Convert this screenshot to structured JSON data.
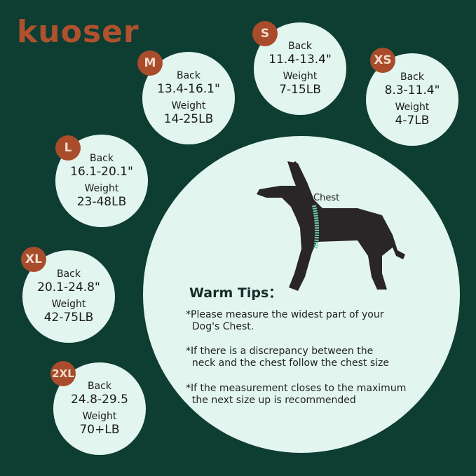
{
  "brand": {
    "logo": "kuoser"
  },
  "colors": {
    "background": "#0e3d32",
    "circle": "#e2f5ee",
    "badge": "#a84c2b",
    "chest_band": "#6fcfb0"
  },
  "sizes": [
    {
      "size": "M",
      "back_label": "Back",
      "back": "13.4-16.1\"",
      "weight_label": "Weight",
      "weight": "14-25LB"
    },
    {
      "size": "S",
      "back_label": "Back",
      "back": "11.4-13.4\"",
      "weight_label": "Weight",
      "weight": "7-15LB"
    },
    {
      "size": "XS",
      "back_label": "Back",
      "back": "8.3-11.4\"",
      "weight_label": "Weight",
      "weight": "4-7LB"
    },
    {
      "size": "L",
      "back_label": "Back",
      "back": "16.1-20.1\"",
      "weight_label": "Weight",
      "weight": "23-48LB"
    },
    {
      "size": "XL",
      "back_label": "Back",
      "back": "20.1-24.8\"",
      "weight_label": "Weight",
      "weight": "42-75LB"
    },
    {
      "size": "2XL",
      "back_label": "Back",
      "back": "24.8-29.5",
      "weight_label": "Weight",
      "weight": "70+LB"
    }
  ],
  "diagram": {
    "chest_label": "Chest"
  },
  "tips": {
    "title": "Warm Tips：",
    "items": [
      "*Please measure the widest part of your\n  Dog's Chest.",
      "*If there is a discrepancy between the\n  neck and the chest follow the chest size",
      "*If the measurement closes to the maximum\n  the next size up is recommended"
    ]
  }
}
